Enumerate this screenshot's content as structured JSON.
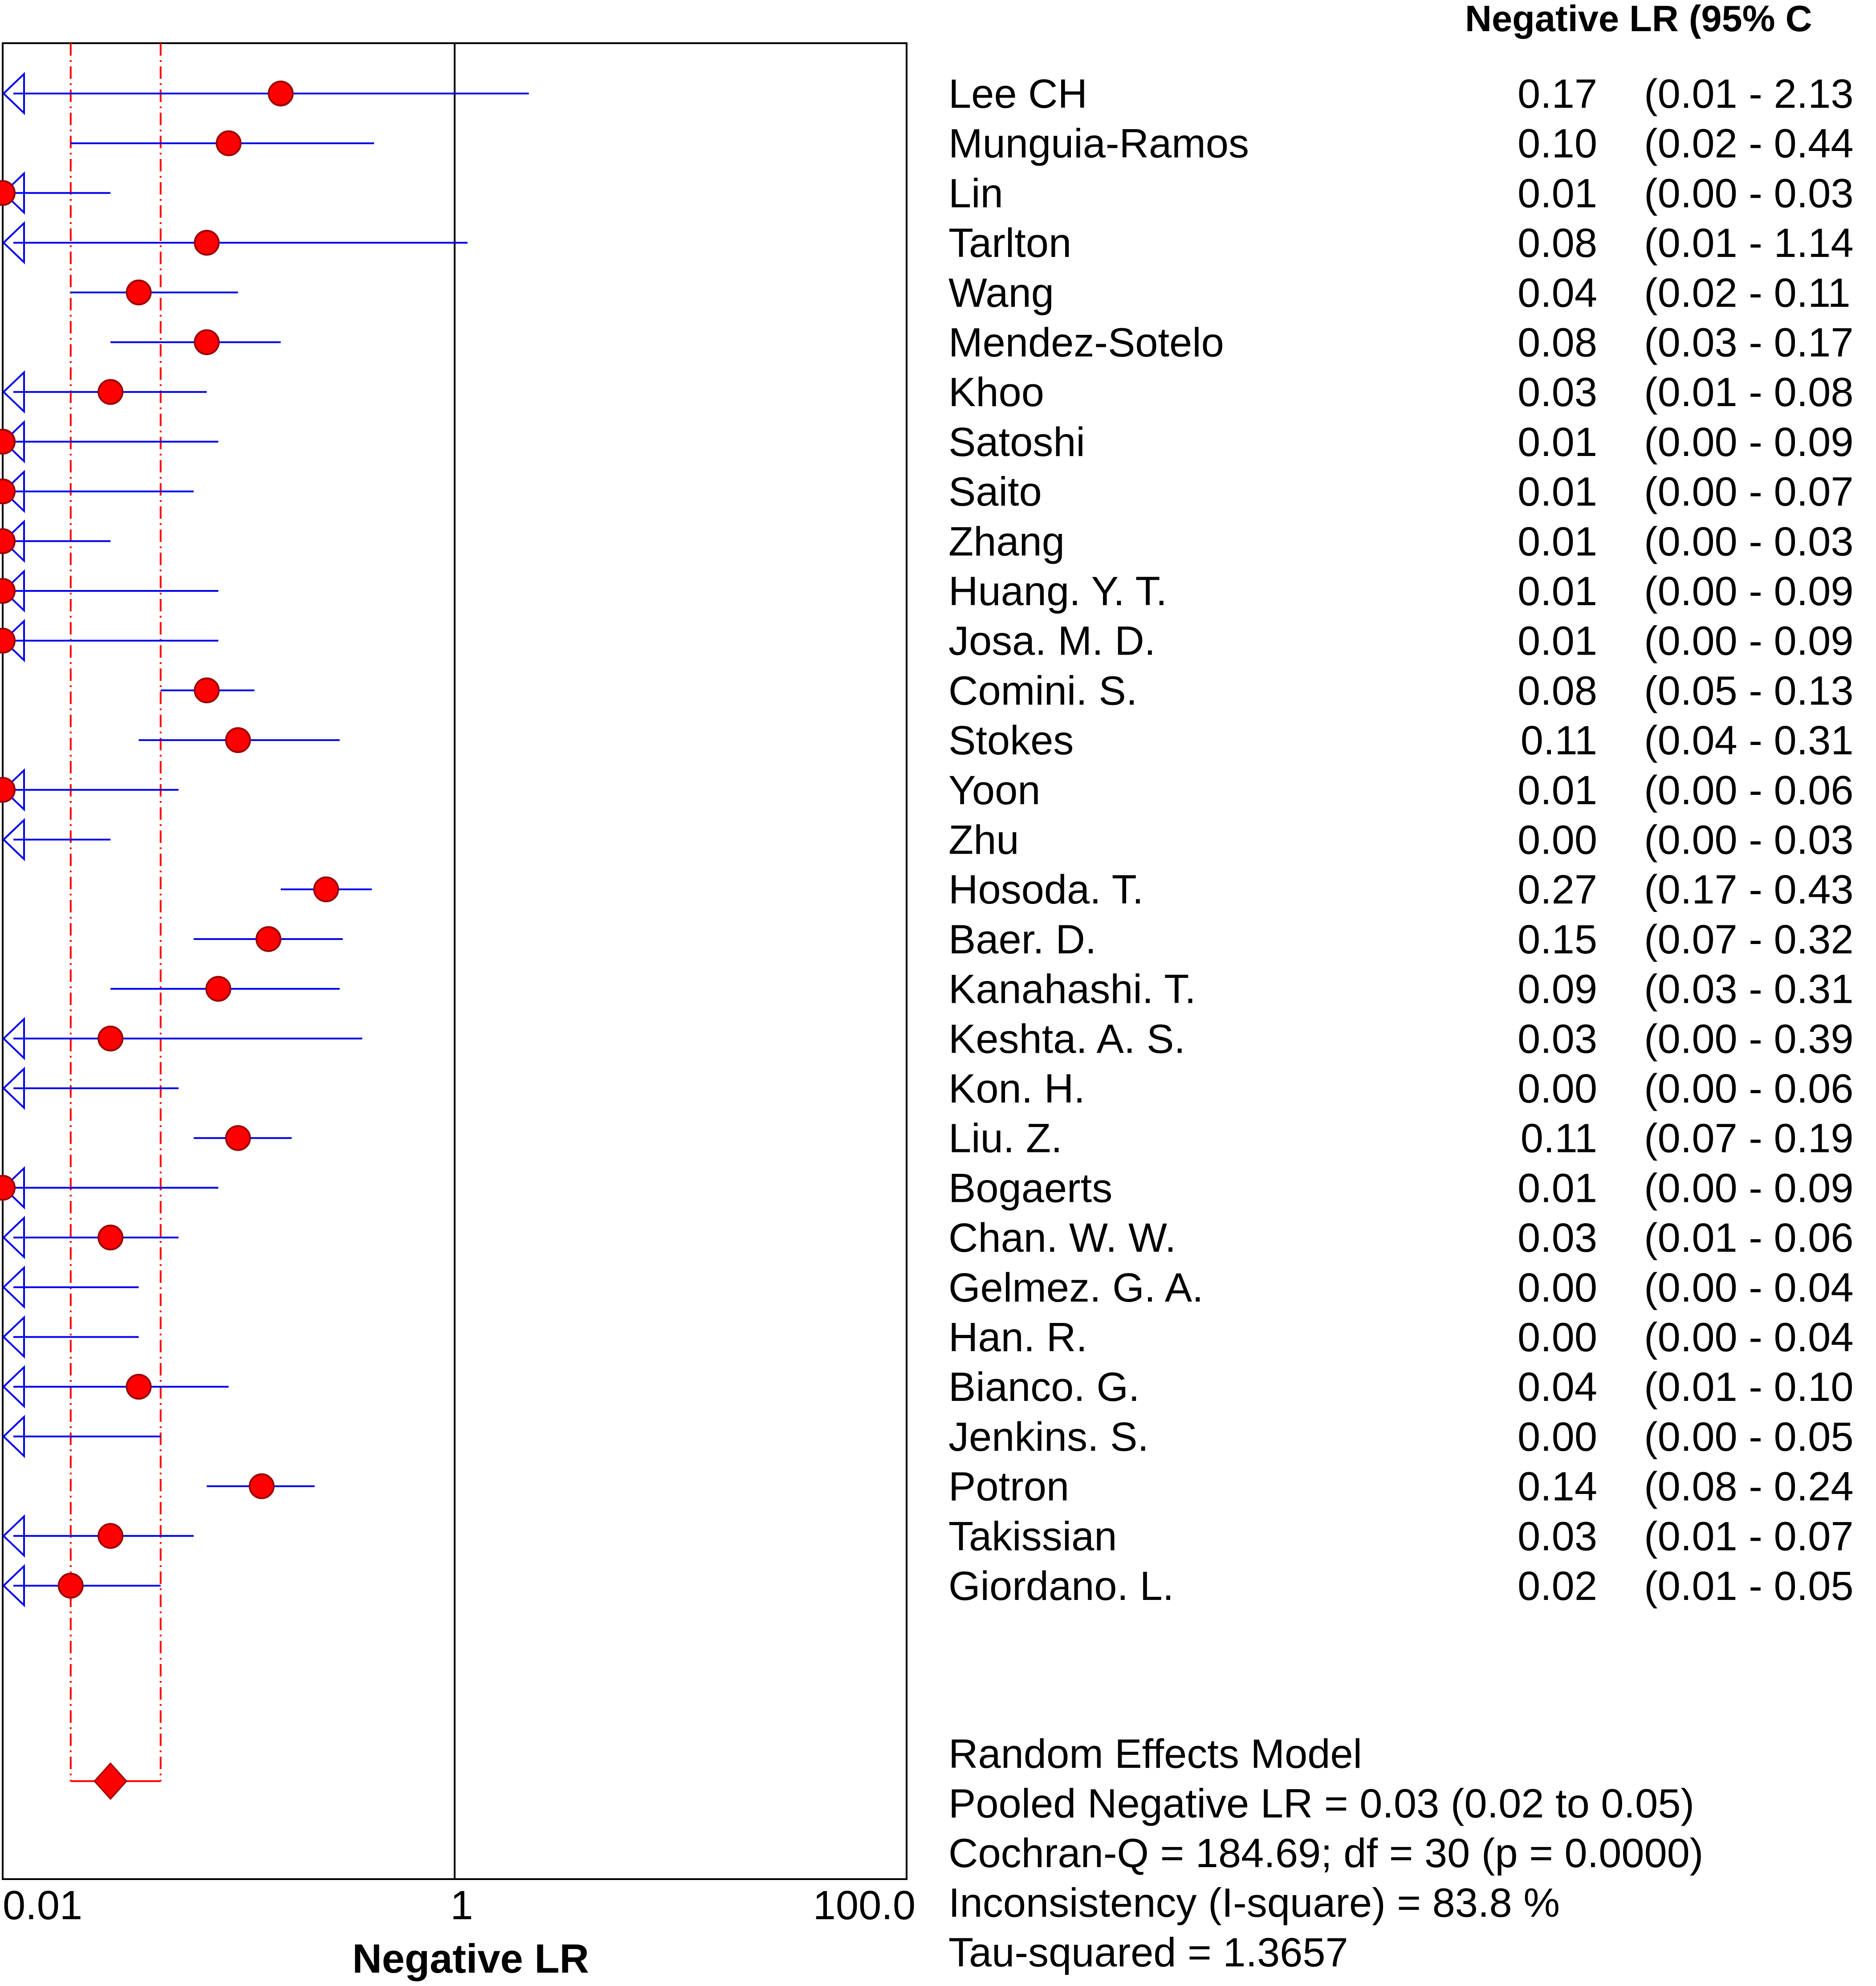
{
  "chart_data": {
    "type": "forest",
    "xlabel": "Negative LR",
    "x_scale": "log",
    "xlim": [
      0.01,
      100.0
    ],
    "x_ticks": [
      "0.01",
      "1",
      "100.0"
    ],
    "reference_line": 1,
    "column_header": "Negative LR (95% C",
    "studies": [
      {
        "name": "Lee CH",
        "est": 0.17,
        "lo": 0.01,
        "hi": 2.13,
        "est_text": "0.17",
        "ci_text": "(0.01 - 2.13"
      },
      {
        "name": "Munguia-Ramos",
        "est": 0.1,
        "lo": 0.02,
        "hi": 0.44,
        "est_text": "0.10",
        "ci_text": "(0.02 - 0.44"
      },
      {
        "name": "Lin",
        "est": 0.01,
        "lo": 0.0,
        "hi": 0.03,
        "est_text": "0.01",
        "ci_text": "(0.00 - 0.03"
      },
      {
        "name": "Tarlton",
        "est": 0.08,
        "lo": 0.01,
        "hi": 1.14,
        "est_text": "0.08",
        "ci_text": "(0.01 - 1.14"
      },
      {
        "name": "Wang",
        "est": 0.04,
        "lo": 0.02,
        "hi": 0.11,
        "est_text": "0.04",
        "ci_text": "(0.02 - 0.11"
      },
      {
        "name": "Mendez-Sotelo",
        "est": 0.08,
        "lo": 0.03,
        "hi": 0.17,
        "est_text": "0.08",
        "ci_text": "(0.03 - 0.17"
      },
      {
        "name": "Khoo",
        "est": 0.03,
        "lo": 0.01,
        "hi": 0.08,
        "est_text": "0.03",
        "ci_text": "(0.01 - 0.08"
      },
      {
        "name": "Satoshi",
        "est": 0.01,
        "lo": 0.0,
        "hi": 0.09,
        "est_text": "0.01",
        "ci_text": "(0.00 - 0.09"
      },
      {
        "name": "Saito",
        "est": 0.01,
        "lo": 0.0,
        "hi": 0.07,
        "est_text": "0.01",
        "ci_text": "(0.00 - 0.07"
      },
      {
        "name": "Zhang",
        "est": 0.01,
        "lo": 0.0,
        "hi": 0.03,
        "est_text": "0.01",
        "ci_text": "(0.00 - 0.03"
      },
      {
        "name": "Huang. Y. T.",
        "est": 0.01,
        "lo": 0.0,
        "hi": 0.09,
        "est_text": "0.01",
        "ci_text": "(0.00 - 0.09"
      },
      {
        "name": "Josa. M. D.",
        "est": 0.01,
        "lo": 0.0,
        "hi": 0.09,
        "est_text": "0.01",
        "ci_text": "(0.00 - 0.09"
      },
      {
        "name": "Comini. S.",
        "est": 0.08,
        "lo": 0.05,
        "hi": 0.13,
        "est_text": "0.08",
        "ci_text": "(0.05 - 0.13"
      },
      {
        "name": "Stokes",
        "est": 0.11,
        "lo": 0.04,
        "hi": 0.31,
        "est_text": "0.11",
        "ci_text": "(0.04 - 0.31"
      },
      {
        "name": "Yoon",
        "est": 0.01,
        "lo": 0.0,
        "hi": 0.06,
        "est_text": "0.01",
        "ci_text": "(0.00 - 0.06"
      },
      {
        "name": "Zhu",
        "est": 0.0,
        "lo": 0.0,
        "hi": 0.03,
        "est_text": "0.00",
        "ci_text": "(0.00 - 0.03"
      },
      {
        "name": "Hosoda. T.",
        "est": 0.27,
        "lo": 0.17,
        "hi": 0.43,
        "est_text": "0.27",
        "ci_text": "(0.17 - 0.43"
      },
      {
        "name": "Baer. D.",
        "est": 0.15,
        "lo": 0.07,
        "hi": 0.32,
        "est_text": "0.15",
        "ci_text": "(0.07 - 0.32"
      },
      {
        "name": "Kanahashi. T.",
        "est": 0.09,
        "lo": 0.03,
        "hi": 0.31,
        "est_text": "0.09",
        "ci_text": "(0.03 - 0.31"
      },
      {
        "name": "Keshta. A. S.",
        "est": 0.03,
        "lo": 0.0,
        "hi": 0.39,
        "est_text": "0.03",
        "ci_text": "(0.00 - 0.39"
      },
      {
        "name": "Kon. H.",
        "est": 0.0,
        "lo": 0.0,
        "hi": 0.06,
        "est_text": "0.00",
        "ci_text": "(0.00 - 0.06"
      },
      {
        "name": "Liu. Z.",
        "est": 0.11,
        "lo": 0.07,
        "hi": 0.19,
        "est_text": "0.11",
        "ci_text": "(0.07 - 0.19"
      },
      {
        "name": "Bogaerts",
        "est": 0.01,
        "lo": 0.0,
        "hi": 0.09,
        "est_text": "0.01",
        "ci_text": "(0.00 - 0.09"
      },
      {
        "name": "Chan. W. W.",
        "est": 0.03,
        "lo": 0.01,
        "hi": 0.06,
        "est_text": "0.03",
        "ci_text": "(0.01 - 0.06"
      },
      {
        "name": "Gelmez. G. A.",
        "est": 0.0,
        "lo": 0.0,
        "hi": 0.04,
        "est_text": "0.00",
        "ci_text": "(0.00 - 0.04"
      },
      {
        "name": "Han. R.",
        "est": 0.0,
        "lo": 0.0,
        "hi": 0.04,
        "est_text": "0.00",
        "ci_text": "(0.00 - 0.04"
      },
      {
        "name": "Bianco. G.",
        "est": 0.04,
        "lo": 0.01,
        "hi": 0.1,
        "est_text": "0.04",
        "ci_text": "(0.01 - 0.10"
      },
      {
        "name": "Jenkins. S.",
        "est": 0.0,
        "lo": 0.0,
        "hi": 0.05,
        "est_text": "0.00",
        "ci_text": "(0.00 - 0.05"
      },
      {
        "name": "Potron",
        "est": 0.14,
        "lo": 0.08,
        "hi": 0.24,
        "est_text": "0.14",
        "ci_text": "(0.08 - 0.24"
      },
      {
        "name": "Takissian",
        "est": 0.03,
        "lo": 0.01,
        "hi": 0.07,
        "est_text": "0.03",
        "ci_text": "(0.01 - 0.07"
      },
      {
        "name": "Giordano. L.",
        "est": 0.02,
        "lo": 0.01,
        "hi": 0.05,
        "est_text": "0.02",
        "ci_text": "(0.01 - 0.05"
      }
    ],
    "pooled": {
      "est": 0.03,
      "lo": 0.02,
      "hi": 0.05
    },
    "stats_lines": [
      "Random Effects Model",
      "Pooled Negative LR = 0.03 (0.02 to 0.05)",
      "Cochran-Q = 184.69; df =  30 (p = 0.0000)",
      "Inconsistency (I-square) = 83.8 %",
      "Tau-squared = 1.3657"
    ],
    "colors": {
      "marker_fill": "#ff0000",
      "marker_stroke": "#990000",
      "ci_line": "#0000ee",
      "pooled_lines": "#ff0000",
      "axis": "#000000"
    }
  }
}
